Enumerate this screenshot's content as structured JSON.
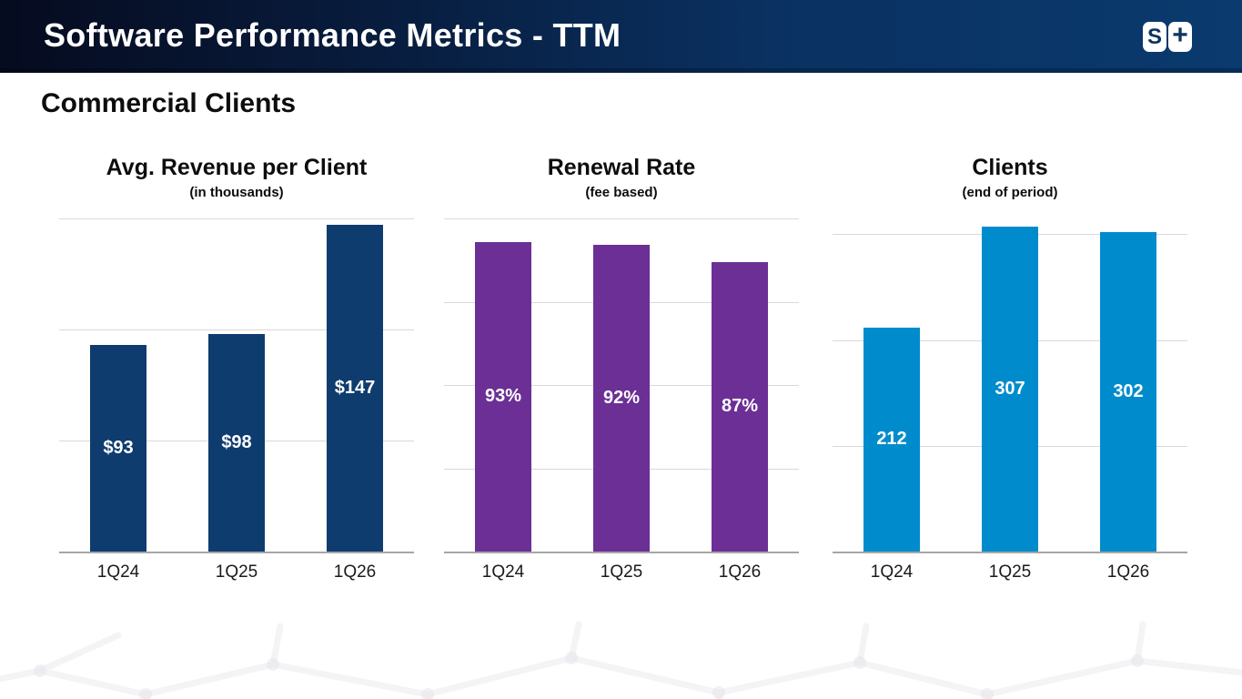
{
  "header": {
    "title": "Software Performance Metrics - TTM",
    "logo": {
      "s": "S",
      "plus": "+"
    }
  },
  "section_title": "Commercial Clients",
  "colors": {
    "header_gradient_start": "#060b1f",
    "header_gradient_end": "#0a3a6e",
    "navy_bar": "#0E3C6E",
    "purple_bar": "#6B2F96",
    "blue_bar": "#008CCC",
    "gridline": "#D9D9D9",
    "axis_line": "#A6A6A6",
    "data_label": "#FFFFFF"
  },
  "chart_data": [
    {
      "type": "bar",
      "title": "Avg. Revenue per Client",
      "subtitle": "(in thousands)",
      "categories": [
        "1Q24",
        "1Q25",
        "1Q26"
      ],
      "values": [
        93,
        98,
        147
      ],
      "data_labels": [
        "$93",
        "$98",
        "$147"
      ],
      "ylim": [
        0,
        150
      ],
      "grid_interval": 50,
      "grid_on": true,
      "legend": "none",
      "bar_color": "#0E3C6E"
    },
    {
      "type": "bar",
      "title": "Renewal Rate",
      "subtitle": "(fee based)",
      "categories": [
        "1Q24",
        "1Q25",
        "1Q26"
      ],
      "values": [
        93,
        92,
        87
      ],
      "data_labels": [
        "93%",
        "92%",
        "87%"
      ],
      "ylim": [
        0,
        100
      ],
      "grid_interval": 25,
      "grid_on": true,
      "legend": "none",
      "bar_color": "#6B2F96"
    },
    {
      "type": "bar",
      "title": "Clients",
      "subtitle": "(end of period)",
      "categories": [
        "1Q24",
        "1Q25",
        "1Q26"
      ],
      "values": [
        212,
        307,
        302
      ],
      "data_labels": [
        "212",
        "307",
        "302"
      ],
      "ylim": [
        0,
        315
      ],
      "grid_interval": 100,
      "grid_on": true,
      "legend": "none",
      "bar_color": "#008CCC"
    }
  ]
}
